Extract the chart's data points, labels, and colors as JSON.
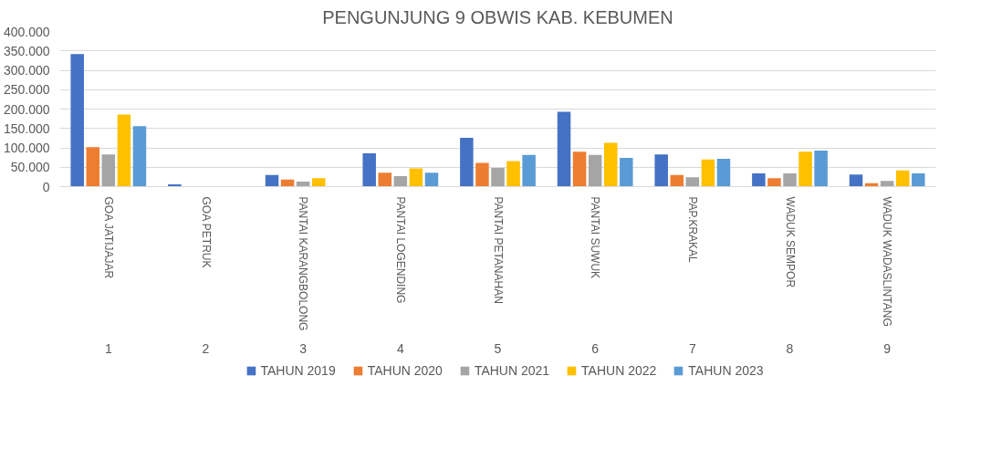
{
  "chart_data": {
    "type": "bar",
    "title": "PENGUNJUNG 9 OBWIS KAB. KEBUMEN",
    "categories": [
      "GOA  JATIJAJAR",
      "GOA PETRUK",
      "PANTAI KARANGBOLONG",
      "PANTAI  LOGENDING",
      "PANTAI PETANAHAN",
      "PANTAI SUWUK",
      "PAP.KRAKAL",
      "WADUK  SEMPOR",
      "WADUK WADASLINTANG"
    ],
    "annotations": [
      "1",
      "2",
      "3",
      "4",
      "5",
      "6",
      "7",
      "8",
      "9"
    ],
    "series": [
      {
        "name": "TAHUN 2019",
        "color": "#4472c4",
        "values": [
          342000,
          6000,
          30000,
          86000,
          126000,
          193000,
          83000,
          34000,
          31000
        ]
      },
      {
        "name": "TAHUN 2020",
        "color": "#ed7d31",
        "values": [
          102000,
          0,
          18000,
          36000,
          61000,
          90000,
          30000,
          22000,
          9000
        ]
      },
      {
        "name": "TAHUN 2021",
        "color": "#a5a5a5",
        "values": [
          83000,
          0,
          13000,
          27000,
          48000,
          82000,
          24000,
          34000,
          15000
        ]
      },
      {
        "name": "TAHUN 2022",
        "color": "#ffc000",
        "values": [
          186000,
          0,
          22000,
          47000,
          66000,
          113000,
          70000,
          90000,
          42000
        ]
      },
      {
        "name": "TAHUN 2023",
        "color": "#5b9bd5",
        "values": [
          156000,
          0,
          0,
          36000,
          82000,
          74000,
          72000,
          93000,
          34000
        ]
      }
    ],
    "ylim": [
      0,
      400000
    ],
    "yticks": [
      {
        "value": 0,
        "label": "0"
      },
      {
        "value": 50000,
        "label": "50.000"
      },
      {
        "value": 100000,
        "label": "100.000"
      },
      {
        "value": 150000,
        "label": "150.000"
      },
      {
        "value": 200000,
        "label": "200.000"
      },
      {
        "value": 250000,
        "label": "250.000"
      },
      {
        "value": 300000,
        "label": "300.000"
      },
      {
        "value": 350000,
        "label": "350.000"
      },
      {
        "value": 400000,
        "label": "400.000"
      }
    ],
    "grid": "y",
    "legend": "bottom"
  }
}
